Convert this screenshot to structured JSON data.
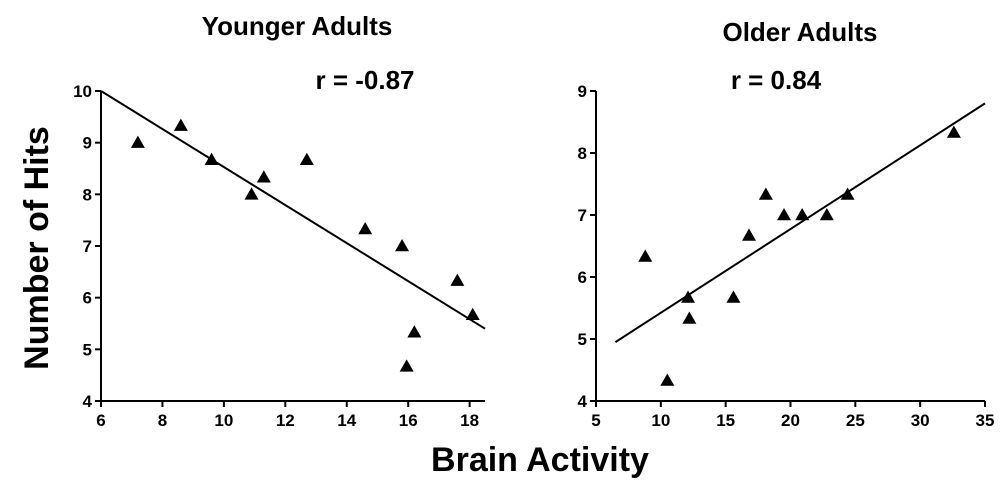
{
  "figure": {
    "ylabel": "Number of Hits",
    "xlabel": "Brain Activity"
  },
  "chart_data": [
    {
      "type": "scatter",
      "title": "Younger Adults",
      "annotation": "r = -0.87",
      "xlim": [
        6,
        18.5
      ],
      "ylim": [
        4,
        10
      ],
      "xticks": [
        "6",
        "8",
        "10",
        "12",
        "14",
        "16",
        "18"
      ],
      "yticks": [
        "4",
        "5",
        "6",
        "7",
        "8",
        "9",
        "10"
      ],
      "marker": "triangle",
      "points": [
        {
          "x": 7.2,
          "y": 9.0
        },
        {
          "x": 8.6,
          "y": 9.33
        },
        {
          "x": 9.6,
          "y": 8.67
        },
        {
          "x": 10.9,
          "y": 8.0
        },
        {
          "x": 11.3,
          "y": 8.33
        },
        {
          "x": 12.7,
          "y": 8.67
        },
        {
          "x": 14.6,
          "y": 7.33
        },
        {
          "x": 15.8,
          "y": 7.0
        },
        {
          "x": 15.95,
          "y": 4.67
        },
        {
          "x": 16.2,
          "y": 5.33
        },
        {
          "x": 17.6,
          "y": 6.33
        },
        {
          "x": 18.1,
          "y": 5.67
        }
      ],
      "fit_line": {
        "x": [
          6,
          18.5
        ],
        "y": [
          10.0,
          5.4
        ]
      }
    },
    {
      "type": "scatter",
      "title": "Older Adults",
      "annotation": "r = 0.84",
      "xlim": [
        5,
        35
      ],
      "ylim": [
        4,
        9
      ],
      "xticks": [
        "5",
        "10",
        "15",
        "20",
        "25",
        "30",
        "35"
      ],
      "yticks": [
        "4",
        "5",
        "6",
        "7",
        "8",
        "9"
      ],
      "marker": "triangle",
      "points": [
        {
          "x": 8.8,
          "y": 6.33
        },
        {
          "x": 10.5,
          "y": 4.33
        },
        {
          "x": 12.1,
          "y": 5.67
        },
        {
          "x": 12.2,
          "y": 5.33
        },
        {
          "x": 15.6,
          "y": 5.67
        },
        {
          "x": 16.8,
          "y": 6.67
        },
        {
          "x": 18.1,
          "y": 7.33
        },
        {
          "x": 19.5,
          "y": 7.0
        },
        {
          "x": 20.9,
          "y": 7.0
        },
        {
          "x": 22.8,
          "y": 7.0
        },
        {
          "x": 24.4,
          "y": 7.33
        },
        {
          "x": 32.6,
          "y": 8.33
        }
      ],
      "fit_line": {
        "x": [
          6.5,
          35
        ],
        "y": [
          4.95,
          8.8
        ]
      }
    }
  ]
}
